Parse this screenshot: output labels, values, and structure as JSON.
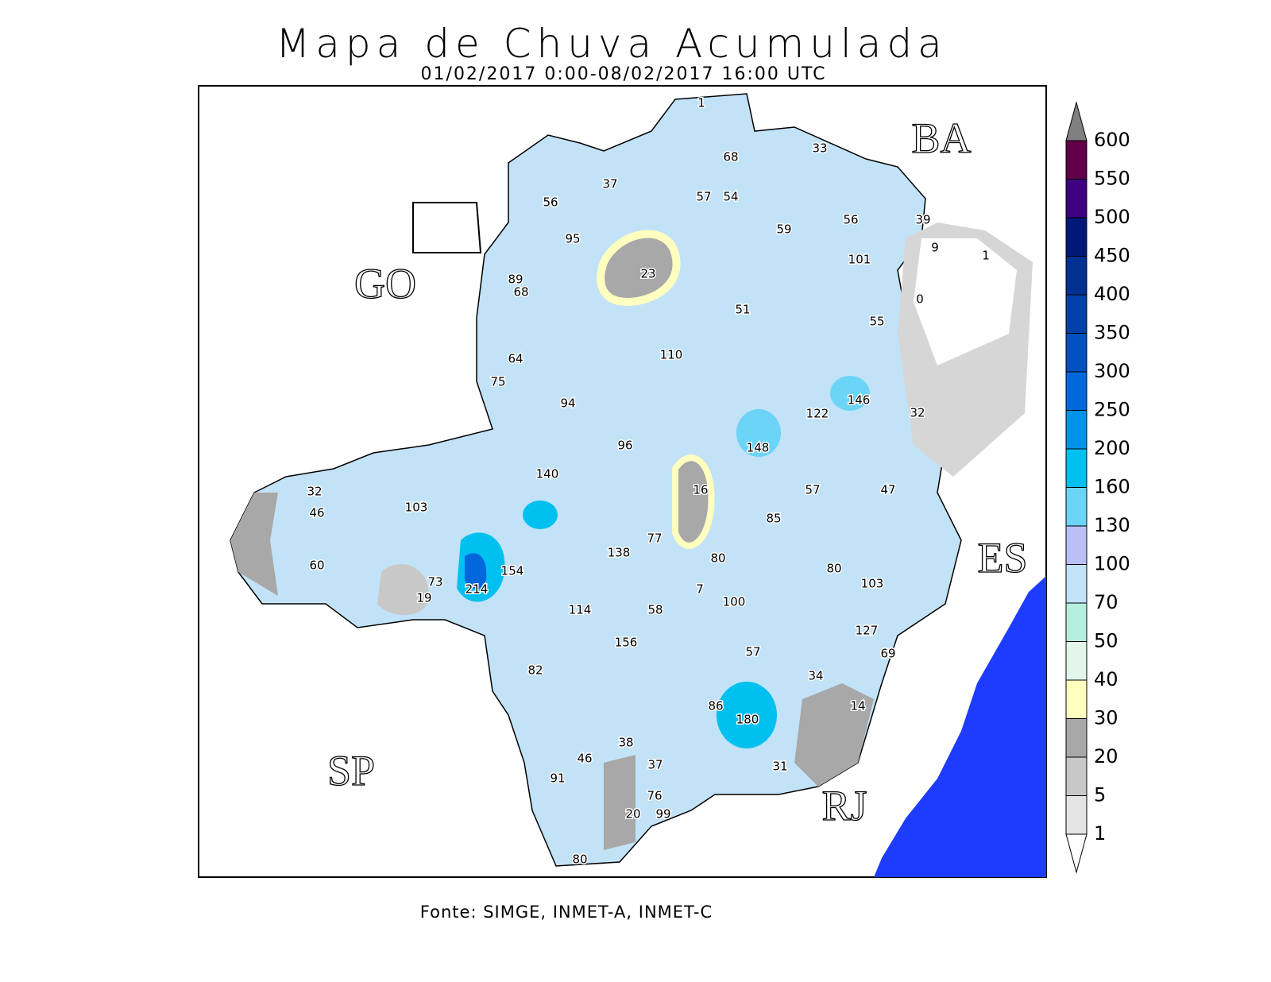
{
  "header": {
    "title": "Mapa de Chuva Acumulada",
    "subtitle": "01/02/2017 0:00-08/02/2017 16:00 UTC"
  },
  "state_labels": [
    "GO",
    "BA",
    "ES",
    "SP",
    "RJ"
  ],
  "stations": [
    1,
    68,
    33,
    37,
    56,
    57,
    54,
    59,
    56,
    39,
    9,
    1,
    95,
    101,
    89,
    68,
    23,
    0,
    51,
    55,
    64,
    110,
    75,
    94,
    122,
    146,
    32,
    96,
    148,
    140,
    32,
    103,
    16,
    57,
    47,
    46,
    85,
    77,
    138,
    60,
    154,
    80,
    80,
    103,
    73,
    214,
    7,
    100,
    19,
    114,
    58,
    127,
    156,
    57,
    69,
    82,
    34,
    86,
    180,
    14,
    38,
    46,
    37,
    31,
    91,
    76,
    20,
    99,
    80
  ],
  "legend": {
    "levels": [
      1,
      5,
      20,
      30,
      40,
      50,
      70,
      100,
      130,
      160,
      200,
      250,
      300,
      350,
      400,
      450,
      500,
      550,
      600
    ],
    "colors": [
      "#ffffff",
      "#e4e4e4",
      "#c8c8c8",
      "#a8a8a8",
      "#ffffc0",
      "#e2f7ea",
      "#b6eedd",
      "#c2e2f8",
      "#b8c0f6",
      "#6cd4f6",
      "#00c0f0",
      "#0094e8",
      "#0068dc",
      "#0050c0",
      "#0040a8",
      "#003090",
      "#001878",
      "#3c0080",
      "#600048",
      "#808080"
    ]
  },
  "footer": {
    "source": "Fonte: SIMGE, INMET-A, INMET-C"
  }
}
